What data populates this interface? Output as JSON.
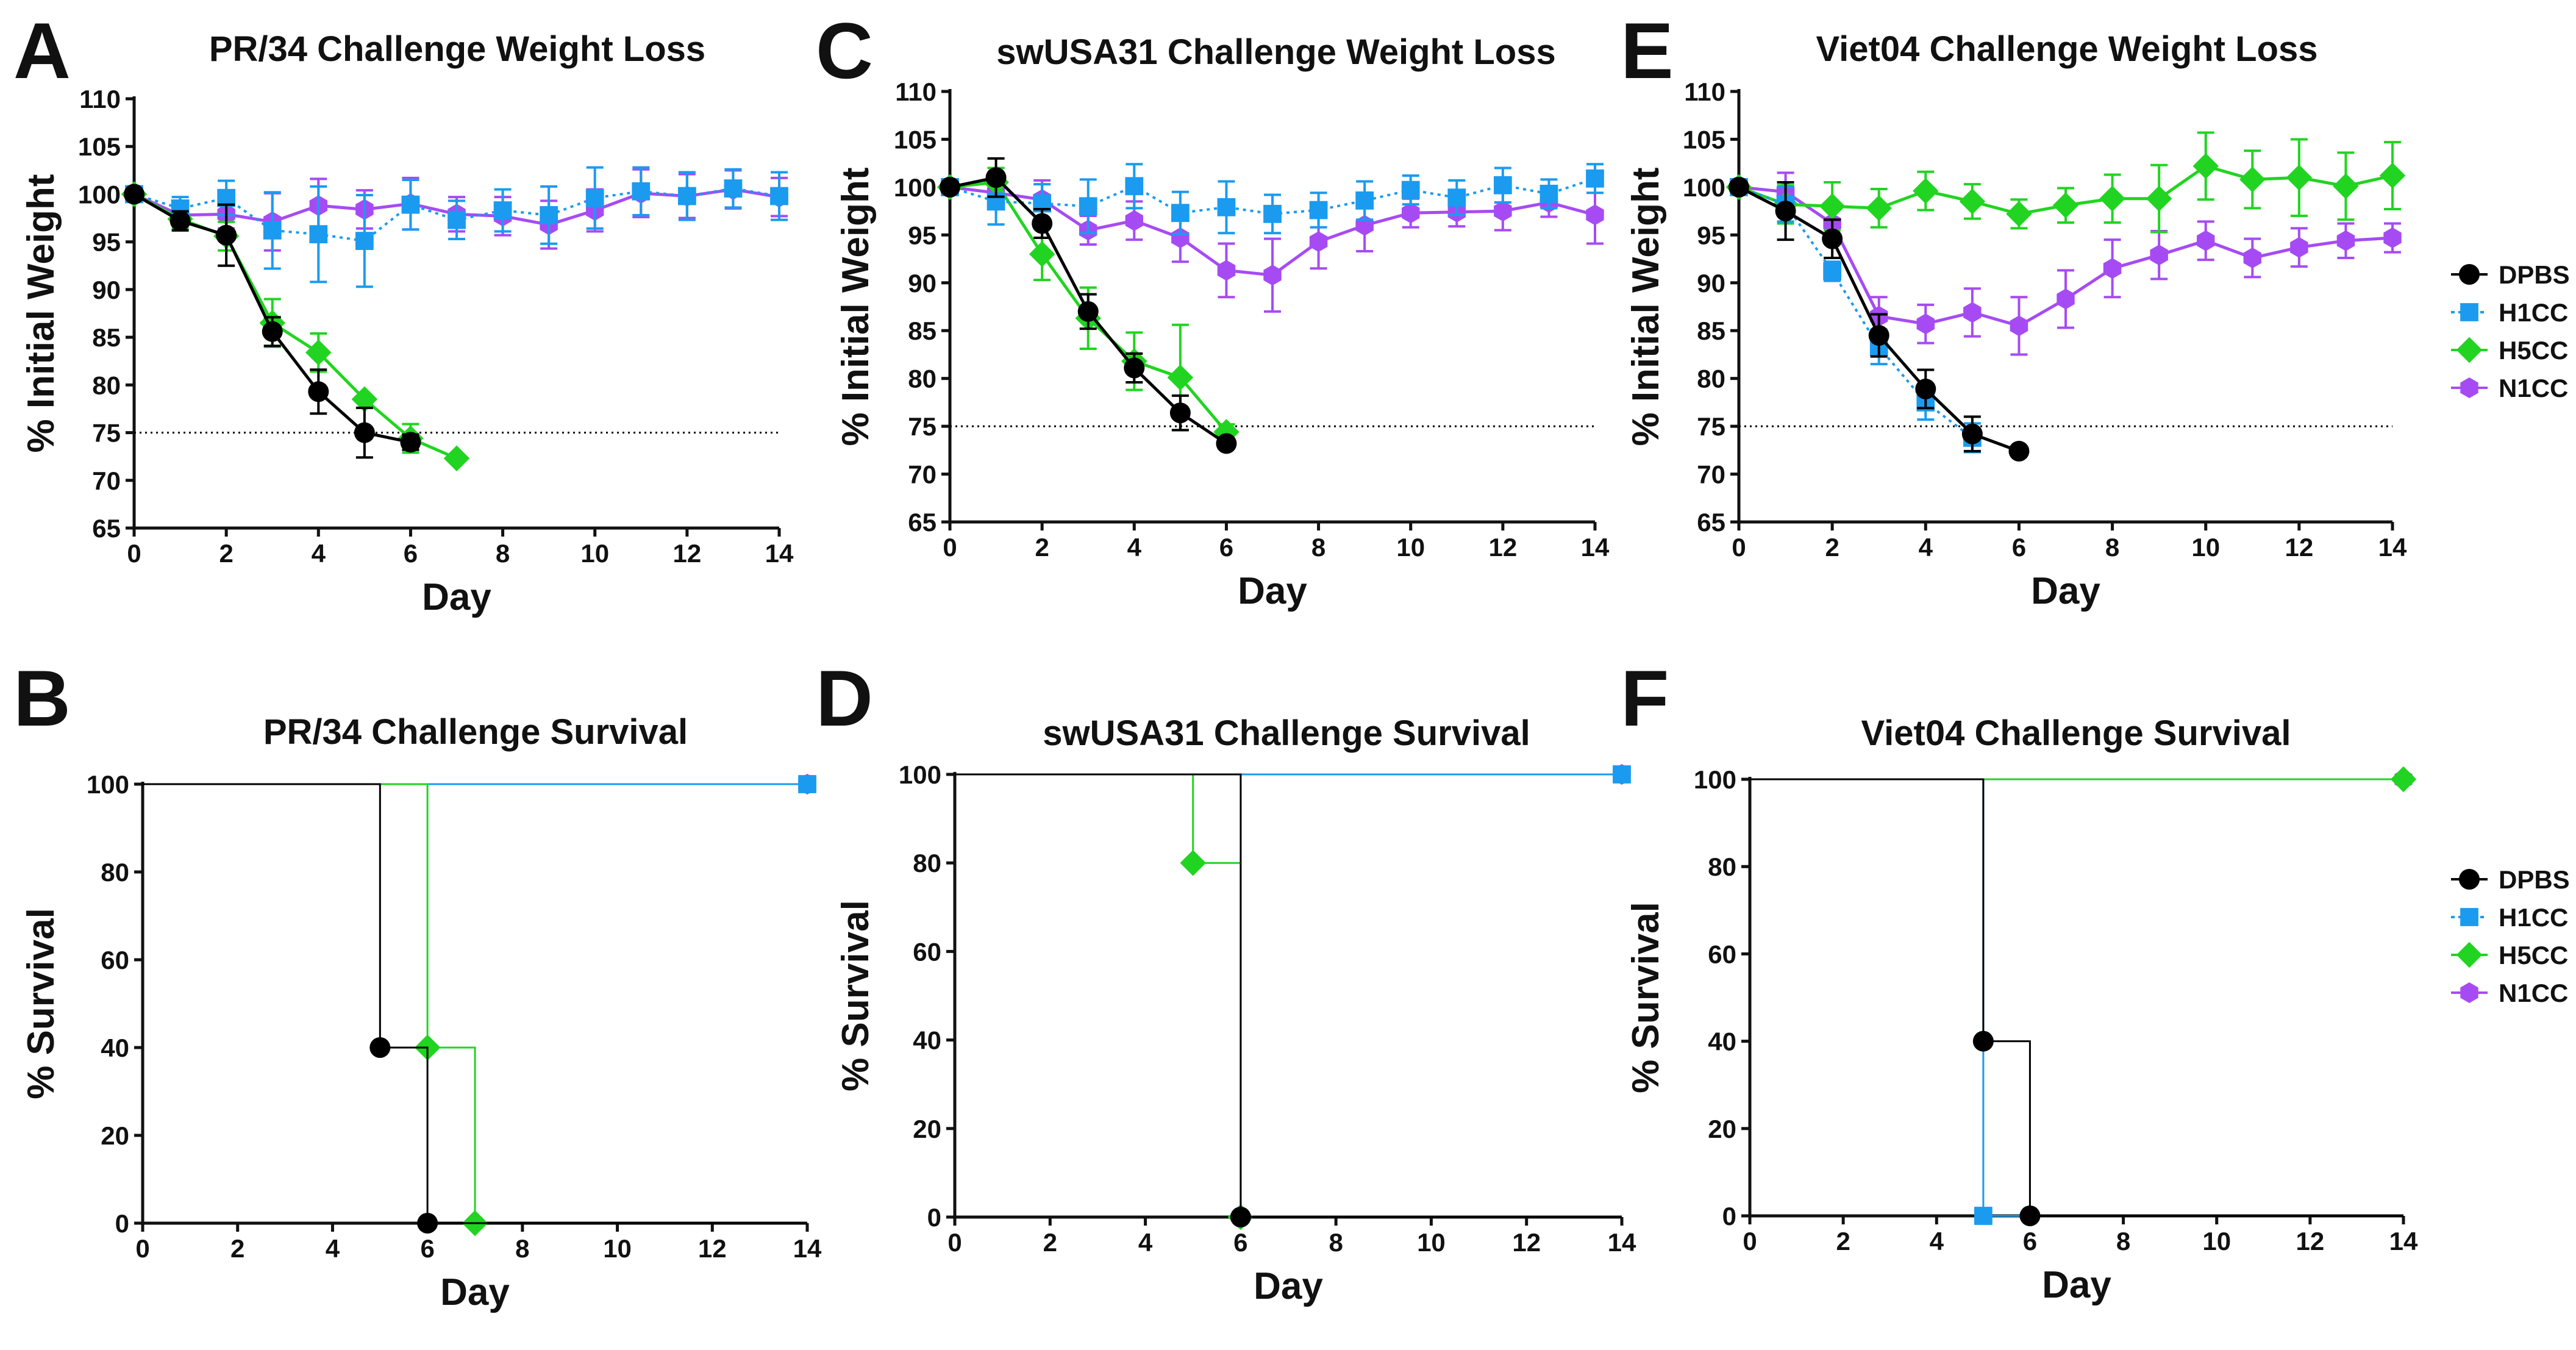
{
  "colors": {
    "DPBS": "#000000",
    "H1CC": "#1a9bf0",
    "H5CC": "#21d421",
    "N1CC": "#a64bf4",
    "threshold": "#000000"
  },
  "legend_entries": [
    "DPBS",
    "H1CC",
    "H5CC",
    "N1CC"
  ],
  "chart_data": [
    {
      "id": "A",
      "letter": "A",
      "type": "line",
      "title": "PR/34 Challenge Weight Loss",
      "xlabel": "Day",
      "ylabel": "% Initial Weight",
      "xlim": [
        0,
        14
      ],
      "ylim": [
        65,
        110
      ],
      "xticks": [
        0,
        2,
        4,
        6,
        8,
        10,
        12,
        14
      ],
      "yticks": [
        65,
        70,
        75,
        80,
        85,
        90,
        95,
        100,
        105,
        110
      ],
      "threshold": 75,
      "series": [
        {
          "name": "DPBS",
          "marker": "circle",
          "dashed": false,
          "x": [
            0,
            1,
            2,
            3,
            4,
            5,
            6
          ],
          "y": [
            100,
            97.2,
            95.7,
            85.6,
            79.3,
            75,
            74
          ],
          "err": [
            0.5,
            1,
            3.2,
            1.5,
            2.3,
            2.6,
            0.8
          ]
        },
        {
          "name": "H1CC",
          "marker": "square",
          "dashed": true,
          "x": [
            0,
            1,
            2,
            3,
            4,
            5,
            6,
            7,
            8,
            9,
            10,
            11,
            12,
            13,
            14
          ],
          "y": [
            100,
            98.5,
            99.6,
            96.2,
            95.8,
            95.1,
            98.9,
            97.3,
            98.3,
            97.8,
            99.6,
            100.3,
            99.8,
            100.6,
            99.8
          ],
          "err": [
            0.5,
            1.2,
            1.8,
            4,
            5,
            4.8,
            2.6,
            2,
            2.2,
            3,
            3.2,
            2.5,
            2.5,
            2,
            2.5
          ]
        },
        {
          "name": "H5CC",
          "marker": "diamond",
          "dashed": false,
          "x": [
            0,
            1,
            2,
            3,
            4,
            5,
            6,
            7
          ],
          "y": [
            100,
            97.4,
            95.6,
            86.5,
            83.4,
            78.5,
            74.4,
            72.3
          ],
          "err": [
            0.5,
            1,
            1.5,
            2.5,
            2,
            0,
            1.5,
            0
          ]
        },
        {
          "name": "N1CC",
          "marker": "hexagon",
          "dashed": false,
          "x": [
            0,
            1,
            2,
            3,
            4,
            5,
            6,
            7,
            8,
            9,
            10,
            11,
            12,
            13,
            14
          ],
          "y": [
            100,
            97.8,
            97.9,
            97.1,
            98.8,
            98.4,
            99,
            97.9,
            97.7,
            96.8,
            98.3,
            100.1,
            99.8,
            100.5,
            99.7
          ],
          "err": [
            0.5,
            1,
            1.5,
            3,
            2.8,
            2,
            2.7,
            1.8,
            2,
            2.5,
            2.2,
            2.5,
            2.3,
            2,
            2
          ]
        }
      ]
    },
    {
      "id": "C",
      "letter": "C",
      "type": "line",
      "title": "swUSA31 Challenge Weight Loss",
      "xlabel": "Day",
      "ylabel": "% Initial Weight",
      "xlim": [
        0,
        14
      ],
      "ylim": [
        65,
        110
      ],
      "xticks": [
        0,
        2,
        4,
        6,
        8,
        10,
        12,
        14
      ],
      "yticks": [
        65,
        70,
        75,
        80,
        85,
        90,
        95,
        100,
        105,
        110
      ],
      "threshold": 75,
      "series": [
        {
          "name": "DPBS",
          "marker": "circle",
          "dashed": false,
          "x": [
            0,
            1,
            2,
            3,
            4,
            5,
            6
          ],
          "y": [
            100,
            101,
            96.2,
            87,
            81.1,
            76.4,
            73.2
          ],
          "err": [
            0.5,
            2,
            1.5,
            1.8,
            1.5,
            1.8,
            0.5
          ]
        },
        {
          "name": "H1CC",
          "marker": "square",
          "dashed": true,
          "x": [
            0,
            1,
            2,
            3,
            4,
            5,
            6,
            7,
            8,
            9,
            10,
            11,
            12,
            13,
            14
          ],
          "y": [
            100,
            98.5,
            98.3,
            98,
            100.1,
            97.3,
            97.9,
            97.2,
            97.6,
            98.6,
            99.7,
            98.9,
            100.2,
            99.3,
            100.9
          ],
          "err": [
            0.5,
            2.4,
            2,
            2.8,
            2.3,
            2.2,
            2.7,
            2,
            1.8,
            2,
            1.5,
            1.8,
            1.8,
            1.5,
            1.5
          ]
        },
        {
          "name": "H5CC",
          "marker": "diamond",
          "dashed": false,
          "x": [
            0,
            1,
            2,
            3,
            4,
            5,
            6
          ],
          "y": [
            100,
            100.5,
            93,
            86.3,
            81.8,
            80.1,
            74.4
          ],
          "err": [
            0.5,
            1.5,
            2.7,
            3.2,
            3,
            5.5,
            0.8
          ]
        },
        {
          "name": "N1CC",
          "marker": "hexagon",
          "dashed": false,
          "x": [
            0,
            1,
            2,
            3,
            4,
            5,
            6,
            7,
            8,
            9,
            10,
            11,
            12,
            13,
            14
          ],
          "y": [
            100,
            99.4,
            98.7,
            95.5,
            96.5,
            94.7,
            91.3,
            90.8,
            94.3,
            96,
            97.3,
            97.4,
            97.5,
            98.4,
            97.1
          ],
          "err": [
            0.5,
            1.5,
            2,
            1.5,
            2,
            2.5,
            2.8,
            3.8,
            2.8,
            2.7,
            1.5,
            1.5,
            2,
            1.5,
            3
          ]
        }
      ]
    },
    {
      "id": "E",
      "letter": "E",
      "type": "line",
      "title": "Viet04 Challenge Weight Loss",
      "xlabel": "Day",
      "ylabel": "% Initial Weight",
      "xlim": [
        0,
        14
      ],
      "ylim": [
        65,
        110
      ],
      "xticks": [
        0,
        2,
        4,
        6,
        8,
        10,
        12,
        14
      ],
      "yticks": [
        65,
        70,
        75,
        80,
        85,
        90,
        95,
        100,
        105,
        110
      ],
      "threshold": 75,
      "series": [
        {
          "name": "DPBS",
          "marker": "circle",
          "dashed": false,
          "x": [
            0,
            1,
            2,
            3,
            4,
            5,
            6
          ],
          "y": [
            100,
            97.5,
            94.6,
            84.5,
            78.9,
            74.2,
            72.4
          ],
          "err": [
            0.5,
            3,
            2,
            2.2,
            2,
            1.8,
            0
          ]
        },
        {
          "name": "H1CC",
          "marker": "square",
          "dashed": true,
          "x": [
            0,
            1,
            2,
            3,
            4,
            5
          ],
          "y": [
            100,
            98.2,
            91.2,
            83.3,
            77.5,
            73.8
          ],
          "err": [
            0.5,
            1.8,
            1,
            1.8,
            1.8,
            1.5
          ]
        },
        {
          "name": "H5CC",
          "marker": "diamond",
          "dashed": false,
          "x": [
            0,
            1,
            2,
            3,
            4,
            5,
            6,
            7,
            8,
            9,
            10,
            11,
            12,
            13,
            14
          ],
          "y": [
            100,
            98.2,
            98,
            97.8,
            99.6,
            98.5,
            97.2,
            98.1,
            98.8,
            98.8,
            102.2,
            100.8,
            101,
            100.1,
            101.2
          ],
          "err": [
            0.5,
            2,
            2.5,
            2,
            2,
            1.8,
            1.5,
            1.8,
            2.5,
            3.5,
            3.5,
            3,
            4,
            3.5,
            3.5
          ]
        },
        {
          "name": "N1CC",
          "marker": "hexagon",
          "dashed": false,
          "x": [
            0,
            1,
            2,
            3,
            4,
            5,
            6,
            7,
            8,
            9,
            10,
            11,
            12,
            13,
            14
          ],
          "y": [
            100,
            99.5,
            96.2,
            86.5,
            85.7,
            86.9,
            85.5,
            88.3,
            91.5,
            92.9,
            94.4,
            92.6,
            93.7,
            94.4,
            94.7
          ],
          "err": [
            0.5,
            2,
            2,
            2,
            2,
            2.5,
            3,
            3,
            3,
            2.5,
            2,
            2,
            2,
            1.8,
            1.5
          ]
        }
      ]
    },
    {
      "id": "B",
      "letter": "B",
      "type": "step",
      "title": "PR/34 Challenge Survival",
      "xlabel": "Day",
      "ylabel": "% Survival",
      "xlim": [
        0,
        14
      ],
      "ylim": [
        0,
        100
      ],
      "xticks": [
        0,
        2,
        4,
        6,
        8,
        10,
        12,
        14
      ],
      "yticks": [
        0,
        20,
        40,
        60,
        80,
        100
      ],
      "series": [
        {
          "name": "N1CC",
          "marker": "hexagon",
          "steps": [
            [
              0,
              100
            ],
            [
              14,
              100
            ]
          ],
          "markers": [
            [
              14,
              100
            ]
          ]
        },
        {
          "name": "H1CC",
          "marker": "square",
          "steps": [
            [
              0,
              100
            ],
            [
              14,
              100
            ]
          ],
          "markers": [
            [
              14,
              100
            ]
          ]
        },
        {
          "name": "H5CC",
          "marker": "diamond",
          "steps": [
            [
              0,
              100
            ],
            [
              6,
              100
            ],
            [
              6,
              40
            ],
            [
              7,
              40
            ],
            [
              7,
              0
            ],
            [
              14,
              0
            ]
          ],
          "markers": [
            [
              6,
              40
            ],
            [
              7,
              0
            ]
          ]
        },
        {
          "name": "DPBS",
          "marker": "circle",
          "steps": [
            [
              0,
              100
            ],
            [
              5,
              100
            ],
            [
              5,
              40
            ],
            [
              6,
              40
            ],
            [
              6,
              0
            ],
            [
              14,
              0
            ]
          ],
          "markers": [
            [
              5,
              40
            ],
            [
              6,
              0
            ]
          ]
        }
      ]
    },
    {
      "id": "D",
      "letter": "D",
      "type": "step",
      "title": "swUSA31 Challenge Survival",
      "xlabel": "Day",
      "ylabel": "% Survival",
      "xlim": [
        0,
        14
      ],
      "ylim": [
        0,
        100
      ],
      "xticks": [
        0,
        2,
        4,
        6,
        8,
        10,
        12,
        14
      ],
      "yticks": [
        0,
        20,
        40,
        60,
        80,
        100
      ],
      "series": [
        {
          "name": "N1CC",
          "marker": "hexagon",
          "steps": [
            [
              0,
              100
            ],
            [
              14,
              100
            ]
          ],
          "markers": [
            [
              14,
              100
            ]
          ]
        },
        {
          "name": "H1CC",
          "marker": "square",
          "steps": [
            [
              0,
              100
            ],
            [
              14,
              100
            ]
          ],
          "markers": [
            [
              14,
              100
            ]
          ]
        },
        {
          "name": "H5CC",
          "marker": "diamond",
          "steps": [
            [
              0,
              100
            ],
            [
              5,
              100
            ],
            [
              5,
              80
            ],
            [
              6,
              80
            ],
            [
              6,
              0
            ],
            [
              14,
              0
            ]
          ],
          "markers": [
            [
              5,
              80
            ],
            [
              6,
              0
            ]
          ]
        },
        {
          "name": "DPBS",
          "marker": "circle",
          "steps": [
            [
              0,
              100
            ],
            [
              6,
              100
            ],
            [
              6,
              0
            ],
            [
              14,
              0
            ]
          ],
          "markers": [
            [
              6,
              0
            ]
          ]
        }
      ]
    },
    {
      "id": "F",
      "letter": "F",
      "type": "step",
      "title": "Viet04 Challenge Survival",
      "xlabel": "Day",
      "ylabel": "% Survival",
      "xlim": [
        0,
        14
      ],
      "ylim": [
        0,
        100
      ],
      "xticks": [
        0,
        2,
        4,
        6,
        8,
        10,
        12,
        14
      ],
      "yticks": [
        0,
        20,
        40,
        60,
        80,
        100
      ],
      "series": [
        {
          "name": "N1CC",
          "marker": "hexagon",
          "steps": [
            [
              0,
              100
            ],
            [
              14,
              100
            ]
          ],
          "markers": [
            [
              14,
              100
            ]
          ]
        },
        {
          "name": "H5CC",
          "marker": "diamond",
          "steps": [
            [
              0,
              100
            ],
            [
              14,
              100
            ]
          ],
          "markers": [
            [
              14,
              100
            ]
          ]
        },
        {
          "name": "H1CC",
          "marker": "square",
          "steps": [
            [
              0,
              100
            ],
            [
              5,
              100
            ],
            [
              5,
              0
            ],
            [
              14,
              0
            ]
          ],
          "markers": [
            [
              5,
              0
            ]
          ]
        },
        {
          "name": "DPBS",
          "marker": "circle",
          "steps": [
            [
              0,
              100
            ],
            [
              5,
              100
            ],
            [
              5,
              40
            ],
            [
              6,
              40
            ],
            [
              6,
              0
            ],
            [
              14,
              0
            ]
          ],
          "markers": [
            [
              5,
              40
            ],
            [
              6,
              0
            ]
          ]
        }
      ]
    }
  ]
}
